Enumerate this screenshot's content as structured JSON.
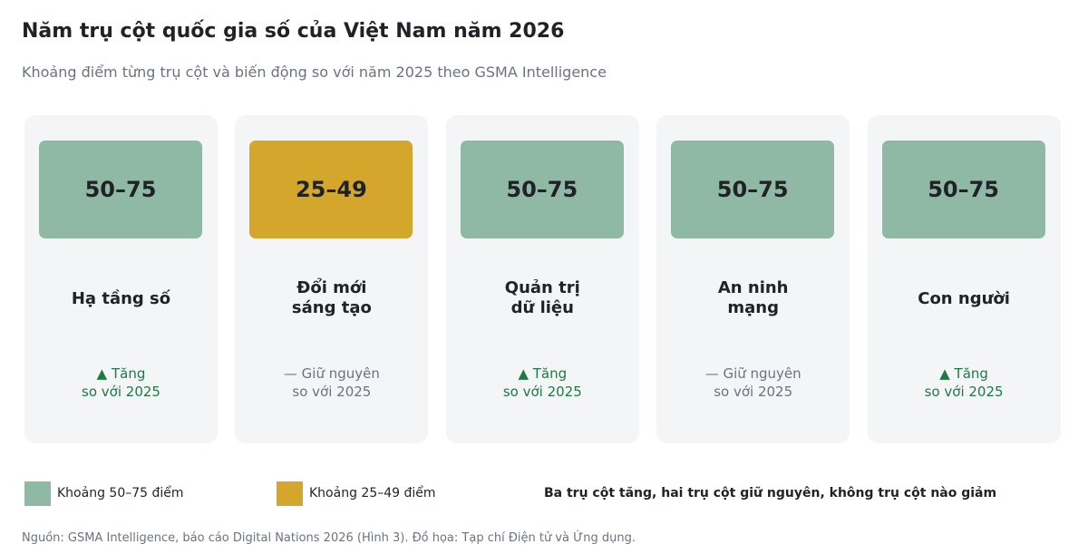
{
  "chart_data": {
    "type": "table",
    "title": "Năm trụ cột quốc gia số của Việt Nam năm 2026",
    "subtitle": "Khoảng điểm từng trụ cột và biến động so với năm 2025 theo GSMA Intelligence",
    "pillars": [
      {
        "name_lines": [
          "Hạ tầng số"
        ],
        "score_range": "50–75",
        "band": "50-75",
        "change": "up",
        "change_lines": [
          "▲ Tăng",
          "so với 2025"
        ]
      },
      {
        "name_lines": [
          "Đổi mới",
          "sáng tạo"
        ],
        "score_range": "25–49",
        "band": "25-49",
        "change": "same",
        "change_lines": [
          "— Giữ nguyên",
          "so với 2025"
        ]
      },
      {
        "name_lines": [
          "Quản trị",
          "dữ liệu"
        ],
        "score_range": "50–75",
        "band": "50-75",
        "change": "up",
        "change_lines": [
          "▲ Tăng",
          "so với 2025"
        ]
      },
      {
        "name_lines": [
          "An ninh",
          "mạng"
        ],
        "score_range": "50–75",
        "band": "50-75",
        "change": "same",
        "change_lines": [
          "— Giữ nguyên",
          "so với 2025"
        ]
      },
      {
        "name_lines": [
          "Con người"
        ],
        "score_range": "50–75",
        "band": "50-75",
        "change": "up",
        "change_lines": [
          "▲ Tăng",
          "so với 2025"
        ]
      }
    ],
    "legend": [
      {
        "label": "Khoảng 50–75 điểm",
        "color": "#8fb8a5"
      },
      {
        "label": "Khoảng 25–49 điểm",
        "color": "#d4a62c"
      }
    ],
    "summary": "Ba trụ cột tăng, hai trụ cột giữ nguyên, không trụ cột nào giảm",
    "source": "Nguồn: GSMA Intelligence, báo cáo Digital Nations 2026 (Hình 3). Đồ họa: Tạp chí Điện tử và Ứng dụng."
  },
  "colors": {
    "band_50_75": "#8fb8a5",
    "band_25_49": "#d4a62c",
    "up": "#1e7a45",
    "same": "#6b7380"
  }
}
